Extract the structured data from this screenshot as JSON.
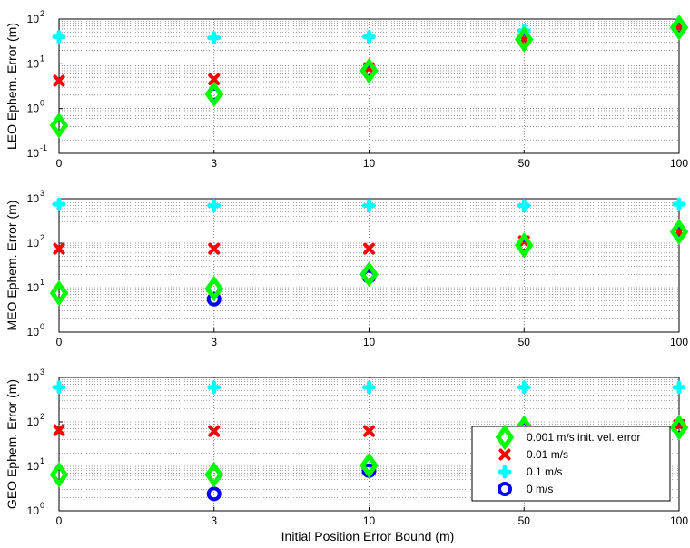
{
  "chart_data": {
    "type": "scatter",
    "xlabel": "Initial Position Error Bound (m)",
    "categories": [
      "0",
      "3",
      "10",
      "50",
      "100"
    ],
    "legend": {
      "placement": "bottom-right of third panel",
      "entries": [
        {
          "label": "0.001 m/s init. vel. error",
          "series_index": 0
        },
        {
          "label": "0.01 m/s",
          "series_index": 1
        },
        {
          "label": "0.1 m/s",
          "series_index": 2
        },
        {
          "label": "0 m/s",
          "series_index": 3
        }
      ]
    },
    "series_styles": [
      {
        "name": "0.001 m/s init. vel. error",
        "marker": "diamond",
        "color": "#00ff00"
      },
      {
        "name": "0.01 m/s",
        "marker": "x",
        "color": "#ff0000"
      },
      {
        "name": "0.1 m/s",
        "marker": "plus",
        "color": "#00ffff"
      },
      {
        "name": "0 m/s",
        "marker": "circle",
        "color": "#0000ff"
      }
    ],
    "panels": [
      {
        "ylabel": "LEO Ephem. Error (m)",
        "yscale": "log",
        "ylim": [
          0.1,
          100
        ],
        "yticks": [
          {
            "base": "10",
            "exp": "-1"
          },
          {
            "base": "10",
            "exp": "0"
          },
          {
            "base": "10",
            "exp": "1"
          },
          {
            "base": "10",
            "exp": "2"
          }
        ],
        "grid": true,
        "series": [
          {
            "name": "0.001 m/s init. vel. error",
            "values": [
              0.42,
              2.1,
              7,
              35,
              65
            ]
          },
          {
            "name": "0.01 m/s",
            "values": [
              4.2,
              4.5,
              8,
              35,
              65
            ]
          },
          {
            "name": "0.1 m/s",
            "values": [
              40,
              38,
              40,
              55,
              70
            ]
          },
          {
            "name": "0 m/s",
            "values": [
              null,
              2.1,
              7,
              35,
              65
            ]
          }
        ]
      },
      {
        "ylabel": "MEO Ephem. Error (m)",
        "yscale": "log",
        "ylim": [
          1,
          1000
        ],
        "yticks": [
          {
            "base": "10",
            "exp": "0"
          },
          {
            "base": "10",
            "exp": "1"
          },
          {
            "base": "10",
            "exp": "2"
          },
          {
            "base": "10",
            "exp": "3"
          }
        ],
        "grid": true,
        "series": [
          {
            "name": "0.001 m/s init. vel. error",
            "values": [
              7.5,
              9.5,
              20,
              90,
              180
            ]
          },
          {
            "name": "0.01 m/s",
            "values": [
              75,
              75,
              75,
              110,
              180
            ]
          },
          {
            "name": "0.1 m/s",
            "values": [
              750,
              700,
              700,
              700,
              750
            ]
          },
          {
            "name": "0 m/s",
            "values": [
              null,
              5.5,
              18,
              90,
              180
            ]
          }
        ]
      },
      {
        "ylabel": "GEO Ephem. Error (m)",
        "yscale": "log",
        "ylim": [
          1,
          1000
        ],
        "yticks": [
          {
            "base": "10",
            "exp": "0"
          },
          {
            "base": "10",
            "exp": "1"
          },
          {
            "base": "10",
            "exp": "2"
          },
          {
            "base": "10",
            "exp": "3"
          }
        ],
        "grid": true,
        "series": [
          {
            "name": "0.001 m/s init. vel. error",
            "values": [
              6.5,
              6.5,
              10.5,
              72,
              75
            ]
          },
          {
            "name": "0.01 m/s",
            "values": [
              65,
              62,
              62,
              72,
              85
            ]
          },
          {
            "name": "0.1 m/s",
            "values": [
              600,
              600,
              600,
              600,
              600
            ]
          },
          {
            "name": "0 m/s",
            "values": [
              null,
              2.4,
              8,
              72,
              75
            ]
          }
        ]
      }
    ]
  }
}
